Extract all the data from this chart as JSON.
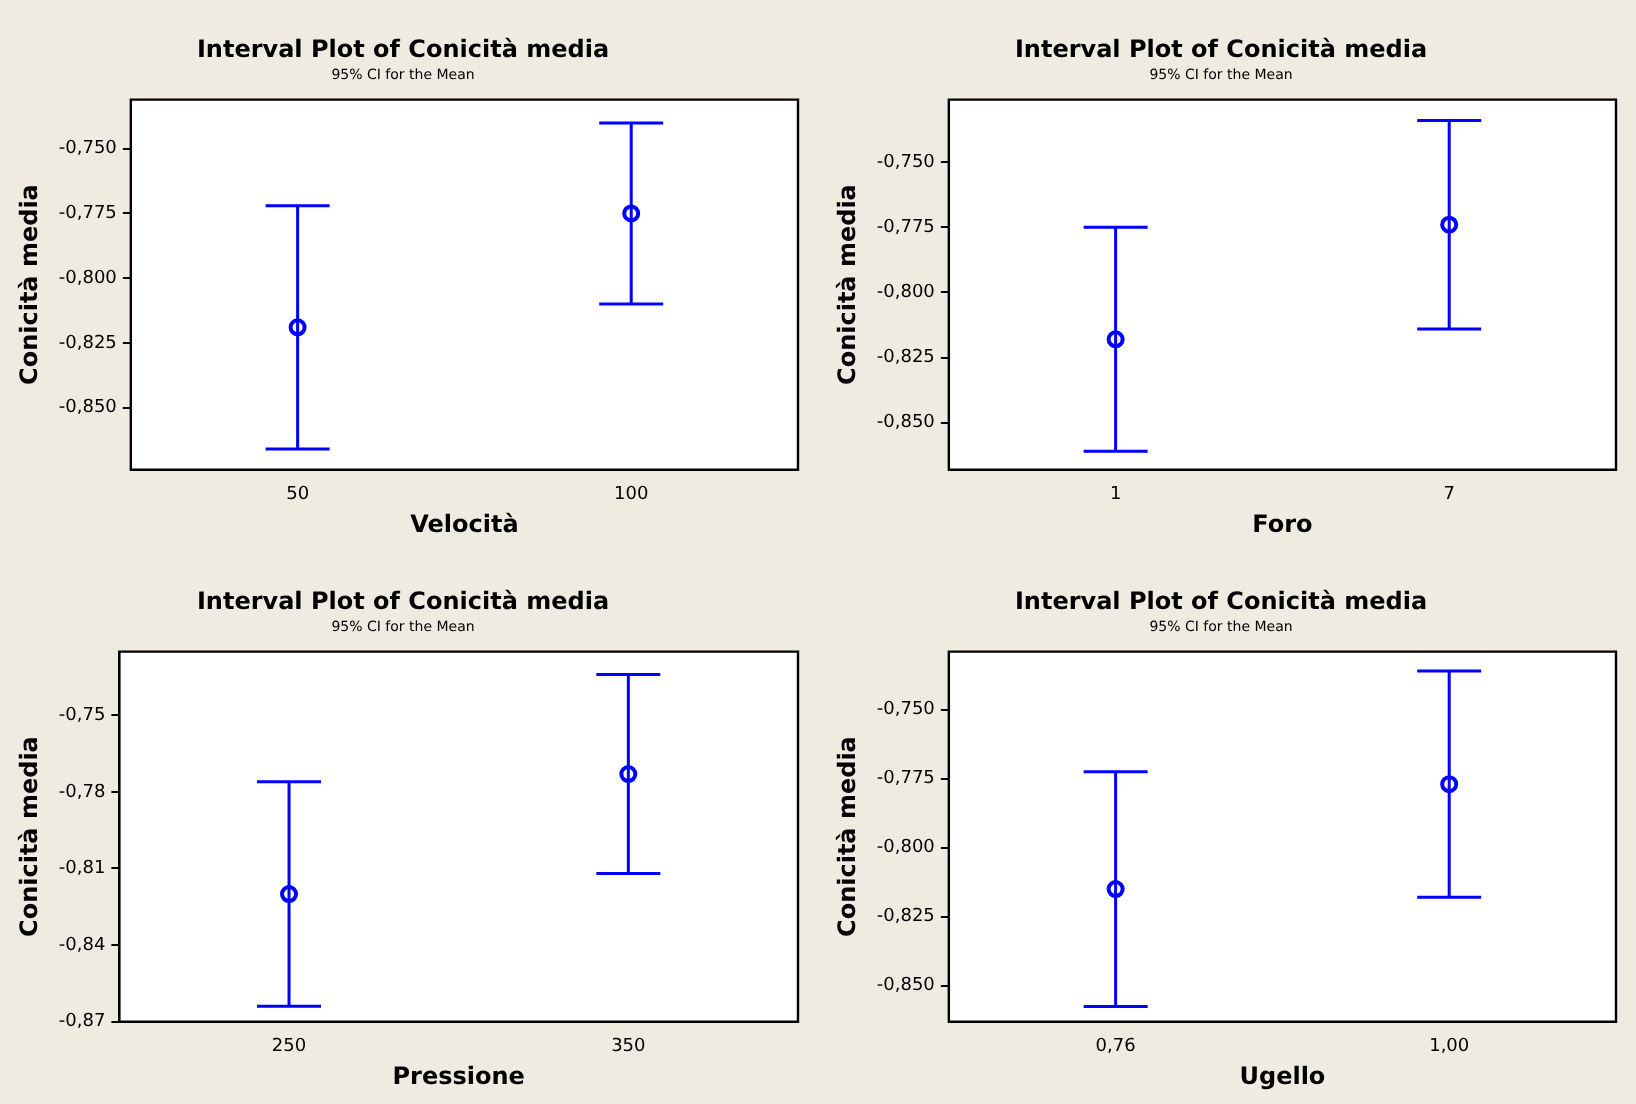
{
  "chart_data": [
    {
      "type": "scatter",
      "title": "Interval Plot of Conicità media",
      "subtitle": "95% CI for the Mean",
      "xlabel": "Velocità",
      "ylabel": "Conicità media",
      "categories": [
        "50",
        "100"
      ],
      "color": "#0000ff",
      "marker": "circle",
      "values": [
        -0.819,
        -0.775
      ],
      "errors": [
        0.047,
        0.035
      ],
      "ylim": [
        -0.874,
        -0.731
      ],
      "yticks": [
        {
          "value": -0.85,
          "label": "-0,850"
        },
        {
          "value": -0.825,
          "label": "-0,825"
        },
        {
          "value": -0.8,
          "label": "-0,800"
        },
        {
          "value": -0.775,
          "label": "-0,775"
        },
        {
          "value": -0.75,
          "label": "-0,750"
        }
      ]
    },
    {
      "type": "scatter",
      "title": "Interval Plot of Conicità media",
      "subtitle": "95% CI for the Mean",
      "xlabel": "Foro",
      "ylabel": "Conicità media",
      "categories": [
        "1",
        "7"
      ],
      "color": "#0000ff",
      "marker": "circle",
      "values": [
        -0.818,
        -0.774
      ],
      "errors": [
        0.043,
        0.04
      ],
      "ylim": [
        -0.868,
        -0.726
      ],
      "yticks": [
        {
          "value": -0.85,
          "label": "-0,850"
        },
        {
          "value": -0.825,
          "label": "-0,825"
        },
        {
          "value": -0.8,
          "label": "-0,800"
        },
        {
          "value": -0.775,
          "label": "-0,775"
        },
        {
          "value": -0.75,
          "label": "-0,750"
        }
      ]
    },
    {
      "type": "scatter",
      "title": "Interval Plot of Conicità media",
      "subtitle": "95% CI for the Mean",
      "xlabel": "Pressione",
      "ylabel": "Conicità media",
      "categories": [
        "250",
        "350"
      ],
      "color": "#0000ff",
      "marker": "circle",
      "values": [
        -0.82,
        -0.773
      ],
      "errors": [
        0.044,
        0.039
      ],
      "ylim": [
        -0.87,
        -0.725
      ],
      "yticks": [
        {
          "value": -0.87,
          "label": "-0,87"
        },
        {
          "value": -0.84,
          "label": "-0,84"
        },
        {
          "value": -0.81,
          "label": "-0,81"
        },
        {
          "value": -0.78,
          "label": "-0,78"
        },
        {
          "value": -0.75,
          "label": "-0,75"
        }
      ]
    },
    {
      "type": "scatter",
      "title": "Interval Plot of Conicità media",
      "subtitle": "95% CI for the Mean",
      "xlabel": "Ugello",
      "ylabel": "Conicità media",
      "categories": [
        "0,76",
        "1,00"
      ],
      "color": "#0000ff",
      "marker": "circle",
      "values": [
        -0.815,
        -0.777
      ],
      "errors": [
        0.0425,
        0.041
      ],
      "ylim": [
        -0.863,
        -0.729
      ],
      "yticks": [
        {
          "value": -0.85,
          "label": "-0,850"
        },
        {
          "value": -0.825,
          "label": "-0,825"
        },
        {
          "value": -0.8,
          "label": "-0,800"
        },
        {
          "value": -0.775,
          "label": "-0,775"
        },
        {
          "value": -0.75,
          "label": "-0,750"
        }
      ]
    }
  ]
}
